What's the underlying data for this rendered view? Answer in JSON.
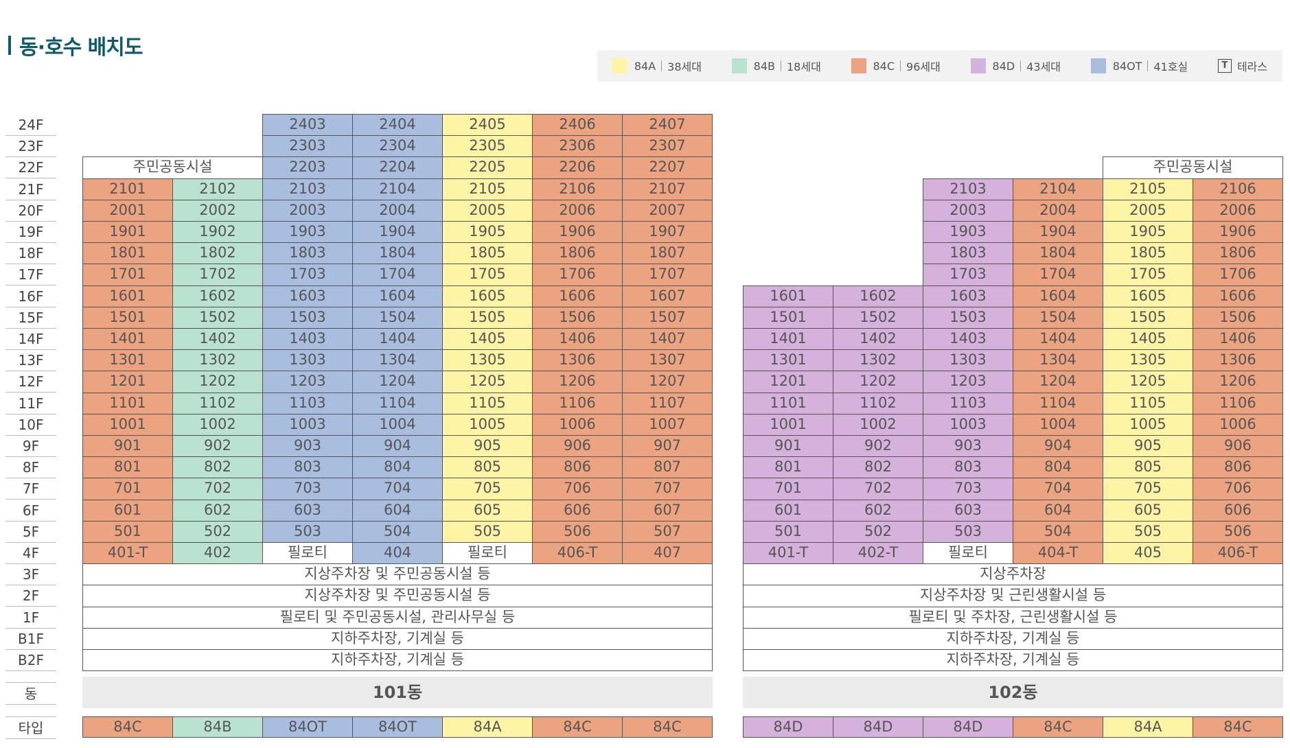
{
  "title": "동·호수 배치도",
  "colors": {
    "84A": "#fff3a6",
    "84B": "#b9e2d1",
    "84C": "#eca480",
    "84D": "#d5b2db",
    "84OT": "#a9bedf",
    "white": "#ffffff"
  },
  "legend": [
    {
      "type": "84A",
      "text": "38세대",
      "color": "#fff3a6"
    },
    {
      "type": "84B",
      "text": "18세대",
      "color": "#b9e2d1"
    },
    {
      "type": "84C",
      "text": "96세대",
      "color": "#eca480"
    },
    {
      "type": "84D",
      "text": "43세대",
      "color": "#d5b2db"
    },
    {
      "type": "84OT",
      "text": "41호실",
      "color": "#a9bedf"
    },
    {
      "type": "T",
      "text": "테라스",
      "icon": "terrace-t-icon"
    }
  ],
  "floors": [
    "24F",
    "23F",
    "22F",
    "21F",
    "20F",
    "19F",
    "18F",
    "17F",
    "16F",
    "15F",
    "14F",
    "13F",
    "12F",
    "11F",
    "10F",
    "9F",
    "8F",
    "7F",
    "6F",
    "5F",
    "4F",
    "3F",
    "2F",
    "1F",
    "B1F",
    "B2F"
  ],
  "dong_label": "동",
  "type_label": "타입",
  "buildings": [
    {
      "name": "101동",
      "col_types": [
        "84C",
        "84B",
        "84OT",
        "84OT",
        "84A",
        "84C",
        "84C"
      ],
      "amenity_22f": "주민공동시설",
      "unit_rows": [
        {
          "floor": "24F",
          "cells": [
            null,
            null,
            "2403",
            "2404",
            "2405",
            "2406",
            "2407"
          ]
        },
        {
          "floor": "23F",
          "cells": [
            null,
            null,
            "2303",
            "2304",
            "2305",
            "2306",
            "2307"
          ]
        },
        {
          "floor": "22F",
          "cells": [
            null,
            null,
            "2203",
            "2204",
            "2205",
            "2206",
            "2207"
          ]
        },
        {
          "floor": "21F",
          "cells": [
            "2101",
            "2102",
            "2103",
            "2104",
            "2105",
            "2106",
            "2107"
          ]
        },
        {
          "floor": "20F",
          "cells": [
            "2001",
            "2002",
            "2003",
            "2004",
            "2005",
            "2006",
            "2007"
          ]
        },
        {
          "floor": "19F",
          "cells": [
            "1901",
            "1902",
            "1903",
            "1904",
            "1905",
            "1906",
            "1907"
          ]
        },
        {
          "floor": "18F",
          "cells": [
            "1801",
            "1802",
            "1803",
            "1804",
            "1805",
            "1806",
            "1807"
          ]
        },
        {
          "floor": "17F",
          "cells": [
            "1701",
            "1702",
            "1703",
            "1704",
            "1705",
            "1706",
            "1707"
          ]
        },
        {
          "floor": "16F",
          "cells": [
            "1601",
            "1602",
            "1603",
            "1604",
            "1605",
            "1606",
            "1607"
          ]
        },
        {
          "floor": "15F",
          "cells": [
            "1501",
            "1502",
            "1503",
            "1504",
            "1505",
            "1506",
            "1507"
          ]
        },
        {
          "floor": "14F",
          "cells": [
            "1401",
            "1402",
            "1403",
            "1404",
            "1405",
            "1406",
            "1407"
          ]
        },
        {
          "floor": "13F",
          "cells": [
            "1301",
            "1302",
            "1303",
            "1304",
            "1305",
            "1306",
            "1307"
          ]
        },
        {
          "floor": "12F",
          "cells": [
            "1201",
            "1202",
            "1203",
            "1204",
            "1205",
            "1206",
            "1207"
          ]
        },
        {
          "floor": "11F",
          "cells": [
            "1101",
            "1102",
            "1103",
            "1104",
            "1105",
            "1106",
            "1107"
          ]
        },
        {
          "floor": "10F",
          "cells": [
            "1001",
            "1002",
            "1003",
            "1004",
            "1005",
            "1006",
            "1007"
          ]
        },
        {
          "floor": "9F",
          "cells": [
            "901",
            "902",
            "903",
            "904",
            "905",
            "906",
            "907"
          ]
        },
        {
          "floor": "8F",
          "cells": [
            "801",
            "802",
            "803",
            "804",
            "805",
            "806",
            "807"
          ]
        },
        {
          "floor": "7F",
          "cells": [
            "701",
            "702",
            "703",
            "704",
            "705",
            "706",
            "707"
          ]
        },
        {
          "floor": "6F",
          "cells": [
            "601",
            "602",
            "603",
            "604",
            "605",
            "606",
            "607"
          ]
        },
        {
          "floor": "5F",
          "cells": [
            "501",
            "502",
            "503",
            "504",
            "505",
            "506",
            "507"
          ]
        },
        {
          "floor": "4F",
          "cells": [
            "401-T",
            "402",
            "필로티",
            "404",
            "필로티",
            "406-T",
            "407"
          ]
        }
      ],
      "lower_floors": [
        {
          "floor": "3F",
          "text": "지상주차장 및 주민공동시설 등"
        },
        {
          "floor": "2F",
          "text": "지상주차장 및 주민공동시설 등"
        },
        {
          "floor": "1F",
          "text": "필로티 및 주민공동시설, 관리사무실 등"
        },
        {
          "floor": "B1F",
          "text": "지하주차장, 기계실 등"
        },
        {
          "floor": "B2F",
          "text": "지하주차장, 기계실 등"
        }
      ]
    },
    {
      "name": "102동",
      "col_types": [
        "84D",
        "84D",
        "84D",
        "84C",
        "84A",
        "84C"
      ],
      "amenity_22f": "주민공동시설",
      "unit_rows": [
        {
          "floor": "21F",
          "cells": [
            null,
            null,
            "2103",
            "2104",
            "2105",
            "2106"
          ]
        },
        {
          "floor": "20F",
          "cells": [
            null,
            null,
            "2003",
            "2004",
            "2005",
            "2006"
          ]
        },
        {
          "floor": "19F",
          "cells": [
            null,
            null,
            "1903",
            "1904",
            "1905",
            "1906"
          ]
        },
        {
          "floor": "18F",
          "cells": [
            null,
            null,
            "1803",
            "1804",
            "1805",
            "1806"
          ]
        },
        {
          "floor": "17F",
          "cells": [
            null,
            null,
            "1703",
            "1704",
            "1705",
            "1706"
          ]
        },
        {
          "floor": "16F",
          "cells": [
            "1601",
            "1602",
            "1603",
            "1604",
            "1605",
            "1606"
          ]
        },
        {
          "floor": "15F",
          "cells": [
            "1501",
            "1502",
            "1503",
            "1504",
            "1505",
            "1506"
          ]
        },
        {
          "floor": "14F",
          "cells": [
            "1401",
            "1402",
            "1403",
            "1404",
            "1405",
            "1406"
          ]
        },
        {
          "floor": "13F",
          "cells": [
            "1301",
            "1302",
            "1303",
            "1304",
            "1305",
            "1306"
          ]
        },
        {
          "floor": "12F",
          "cells": [
            "1201",
            "1202",
            "1203",
            "1204",
            "1205",
            "1206"
          ]
        },
        {
          "floor": "11F",
          "cells": [
            "1101",
            "1102",
            "1103",
            "1104",
            "1105",
            "1106"
          ]
        },
        {
          "floor": "10F",
          "cells": [
            "1001",
            "1002",
            "1003",
            "1004",
            "1005",
            "1006"
          ]
        },
        {
          "floor": "9F",
          "cells": [
            "901",
            "902",
            "903",
            "904",
            "905",
            "906"
          ]
        },
        {
          "floor": "8F",
          "cells": [
            "801",
            "802",
            "803",
            "804",
            "805",
            "806"
          ]
        },
        {
          "floor": "7F",
          "cells": [
            "701",
            "702",
            "703",
            "704",
            "705",
            "706"
          ]
        },
        {
          "floor": "6F",
          "cells": [
            "601",
            "602",
            "603",
            "604",
            "605",
            "606"
          ]
        },
        {
          "floor": "5F",
          "cells": [
            "501",
            "502",
            "503",
            "504",
            "505",
            "506"
          ]
        },
        {
          "floor": "4F",
          "cells": [
            "401-T",
            "402-T",
            "필로티",
            "404-T",
            "405",
            "406-T"
          ]
        }
      ],
      "lower_floors": [
        {
          "floor": "3F",
          "text": "지상주차장"
        },
        {
          "floor": "2F",
          "text": "지상주차장 및 근린생활시설 등"
        },
        {
          "floor": "1F",
          "text": "필로티 및 주차장, 근린생활시설 등"
        },
        {
          "floor": "B1F",
          "text": "지하주차장, 기계실 등"
        },
        {
          "floor": "B2F",
          "text": "지하주차장, 기계실 등"
        }
      ]
    }
  ]
}
